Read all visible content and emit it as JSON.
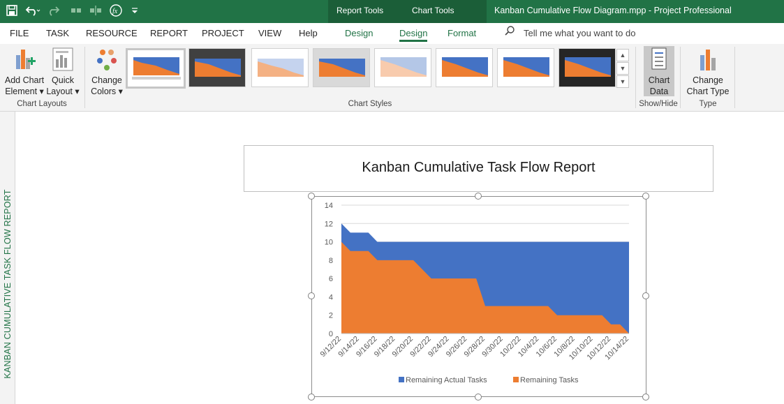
{
  "quick_access": {
    "save_icon": "save-icon",
    "undo_icon": "undo-icon",
    "redo_icon": "redo-icon",
    "fx_icon": "fx-icon",
    "customize_icon": "dropdown-icon"
  },
  "context_tabs": {
    "report_tools": "Report Tools",
    "chart_tools": "Chart Tools"
  },
  "window_title": "Kanban Cumulative Flow Diagram.mpp  -  Project Professional",
  "menu": {
    "file": "FILE",
    "task": "TASK",
    "resource": "RESOURCE",
    "report": "REPORT",
    "project": "PROJECT",
    "view": "VIEW",
    "help": "Help",
    "design1": "Design",
    "design2": "Design",
    "format": "Format",
    "tell_me": "Tell me what you want to do"
  },
  "ribbon": {
    "add_chart_element": [
      "Add Chart",
      "Element ▾"
    ],
    "quick_layout": [
      "Quick",
      "Layout ▾"
    ],
    "chart_layouts_label": "Chart Layouts",
    "change_colors": [
      "Change",
      "Colors ▾"
    ],
    "chart_styles_label": "Chart Styles",
    "chart_data": [
      "Chart",
      "Data"
    ],
    "show_hide_label": "Show/Hide",
    "change_chart_type": [
      "Change",
      "Chart Type"
    ],
    "type_label": "Type"
  },
  "side_label": "KANBAN CUMULATIVE TASK FLOW REPORT",
  "report_title": "Kanban Cumulative Task Flow Report",
  "chart_data": {
    "type": "area",
    "stacked": false,
    "categories": [
      "9/12/22",
      "9/13/22",
      "9/14/22",
      "9/15/22",
      "9/16/22",
      "9/17/22",
      "9/18/22",
      "9/19/22",
      "9/20/22",
      "9/21/22",
      "9/22/22",
      "9/23/22",
      "9/24/22",
      "9/25/22",
      "9/26/22",
      "9/27/22",
      "9/28/22",
      "9/29/22",
      "9/30/22",
      "10/1/22",
      "10/2/22",
      "10/3/22",
      "10/4/22",
      "10/5/22",
      "10/6/22",
      "10/7/22",
      "10/8/22",
      "10/9/22",
      "10/10/22",
      "10/11/22",
      "10/12/22",
      "10/13/22",
      "10/14/22"
    ],
    "tick_labels": [
      "9/12/22",
      "9/14/22",
      "9/16/22",
      "9/18/22",
      "9/20/22",
      "9/22/22",
      "9/24/22",
      "9/26/22",
      "9/28/22",
      "9/30/22",
      "10/2/22",
      "10/4/22",
      "10/6/22",
      "10/8/22",
      "10/10/22",
      "10/12/22",
      "10/14/22"
    ],
    "series": [
      {
        "name": "Remaining Actual Tasks",
        "color": "#4472c4",
        "values": [
          12,
          11,
          11,
          11,
          10,
          10,
          10,
          10,
          10,
          10,
          10,
          10,
          10,
          10,
          10,
          10,
          10,
          10,
          10,
          10,
          10,
          10,
          10,
          10,
          10,
          10,
          10,
          10,
          10,
          10,
          10,
          10,
          10
        ]
      },
      {
        "name": "Remaining Tasks",
        "color": "#ed7d31",
        "values": [
          10,
          9,
          9,
          9,
          8,
          8,
          8,
          8,
          8,
          7,
          6,
          6,
          6,
          6,
          6,
          6,
          3,
          3,
          3,
          3,
          3,
          3,
          3,
          3,
          2,
          2,
          2,
          2,
          2,
          2,
          1,
          1,
          0
        ]
      }
    ],
    "ylim": [
      0,
      14
    ],
    "yticks": [
      0,
      2,
      4,
      6,
      8,
      10,
      12,
      14
    ],
    "grid": true,
    "legend": "bottom"
  }
}
